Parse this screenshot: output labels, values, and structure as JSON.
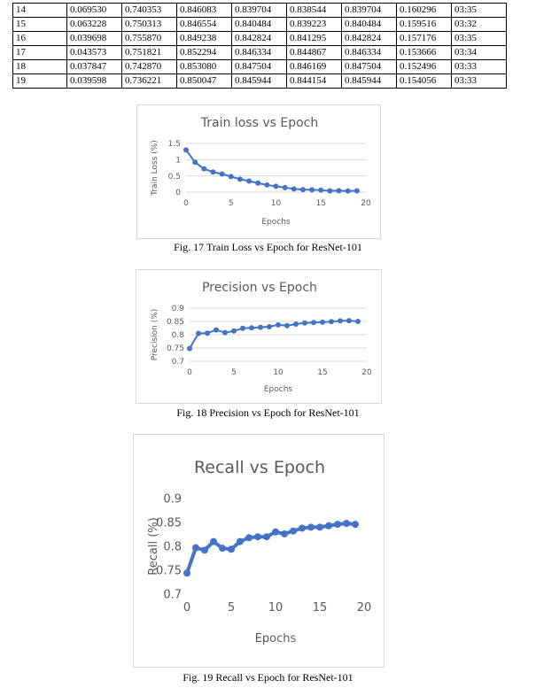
{
  "table": {
    "rows": [
      [
        "14",
        "0.069530",
        "0.740353",
        "0.846083",
        "0.839704",
        "0.838544",
        "0.839704",
        "0.160296",
        "03:35"
      ],
      [
        "15",
        "0.063228",
        "0.750313",
        "0.846554",
        "0.840484",
        "0.839223",
        "0.840484",
        "0.159516",
        "03:32"
      ],
      [
        "16",
        "0.039698",
        "0.755870",
        "0.849238",
        "0.842824",
        "0.841295",
        "0.842824",
        "0.157176",
        "03:35"
      ],
      [
        "17",
        "0.043573",
        "0.751821",
        "0.852294",
        "0.846334",
        "0.844867",
        "0.846334",
        "0.153666",
        "03:34"
      ],
      [
        "18",
        "0.037847",
        "0.742870",
        "0.853080",
        "0.847504",
        "0.846169",
        "0.847504",
        "0.152496",
        "03:33"
      ],
      [
        "19",
        "0.039598",
        "0.736221",
        "0.850047",
        "0.845944",
        "0.844154",
        "0.845944",
        "0.154056",
        "03:33"
      ]
    ]
  },
  "colors": {
    "series": "#4472c4",
    "grid": "#d9d9d9",
    "text": "#595959"
  },
  "chart_data": [
    {
      "type": "line",
      "title": "Train loss vs Epoch",
      "xlabel": "Epochs",
      "ylabel": "Train Loss (%)",
      "xlim": [
        0,
        20
      ],
      "ylim": [
        0,
        1.5
      ],
      "xticks": [
        "0",
        "5",
        "10",
        "15",
        "20"
      ],
      "yticks": [
        "0",
        "0.5",
        "1",
        "1.5"
      ],
      "x": [
        0,
        1,
        2,
        3,
        4,
        5,
        6,
        7,
        8,
        9,
        10,
        11,
        12,
        13,
        14,
        15,
        16,
        17,
        18,
        19
      ],
      "values": [
        1.3,
        0.92,
        0.72,
        0.62,
        0.56,
        0.48,
        0.4,
        0.34,
        0.28,
        0.22,
        0.18,
        0.14,
        0.1,
        0.08,
        0.07,
        0.063,
        0.04,
        0.044,
        0.038,
        0.04
      ],
      "grid": true
    },
    {
      "type": "line",
      "title": "Precision vs Epoch",
      "xlabel": "Epochs",
      "ylabel": "Precision (%)",
      "xlim": [
        0,
        20
      ],
      "ylim": [
        0.7,
        0.9
      ],
      "xticks": [
        "0",
        "5",
        "10",
        "15",
        "20"
      ],
      "yticks": [
        "0.7",
        "0.75",
        "0.8",
        "0.85",
        "0.9"
      ],
      "x": [
        0,
        1,
        2,
        3,
        4,
        5,
        6,
        7,
        8,
        9,
        10,
        11,
        12,
        13,
        14,
        15,
        16,
        17,
        18,
        19
      ],
      "values": [
        0.748,
        0.805,
        0.806,
        0.818,
        0.808,
        0.814,
        0.824,
        0.826,
        0.828,
        0.83,
        0.837,
        0.834,
        0.84,
        0.844,
        0.846,
        0.847,
        0.849,
        0.852,
        0.853,
        0.85
      ],
      "grid": true
    },
    {
      "type": "line",
      "title": "Recall vs Epoch",
      "xlabel": "Epochs",
      "ylabel": "Recall (%)",
      "xlim": [
        0,
        20
      ],
      "ylim": [
        0.7,
        0.9
      ],
      "xticks": [
        "0",
        "5",
        "10",
        "15",
        "20"
      ],
      "yticks": [
        "0.7",
        "0.75",
        "0.8",
        "0.85",
        "0.9"
      ],
      "x": [
        0,
        1,
        2,
        3,
        4,
        5,
        6,
        7,
        8,
        9,
        10,
        11,
        12,
        13,
        14,
        15,
        16,
        17,
        18,
        19
      ],
      "values": [
        0.744,
        0.797,
        0.792,
        0.81,
        0.796,
        0.794,
        0.81,
        0.818,
        0.82,
        0.82,
        0.83,
        0.826,
        0.832,
        0.838,
        0.84,
        0.84,
        0.843,
        0.846,
        0.848,
        0.846
      ],
      "grid": false
    }
  ],
  "captions": [
    "Fig. 17 Train Loss vs Epoch for ResNet-101",
    "Fig. 18 Precision vs Epoch for ResNet-101",
    "Fig. 19 Recall vs Epoch for ResNet-101"
  ]
}
